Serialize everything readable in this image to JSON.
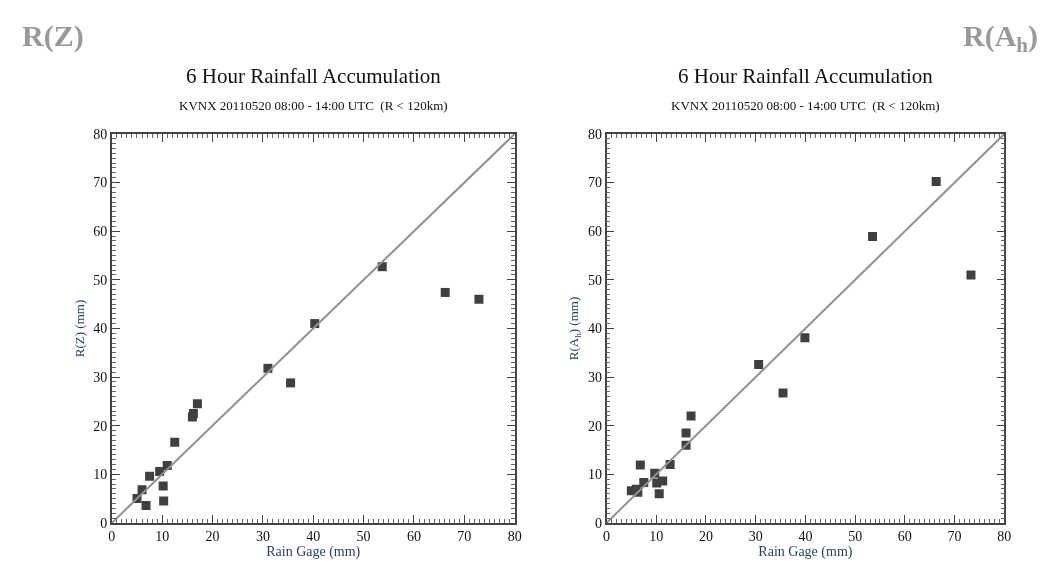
{
  "chart_data": [
    {
      "type": "scatter",
      "title": "6 Hour Rainfall Accumulation",
      "subtitle": "KVNX 20110520 08:00 - 14:00 UTC  (R < 120km)",
      "xlabel": "Rain Gage (mm)",
      "ylabel": "R(Z) (mm)",
      "annotations": [
        "R(Z)"
      ],
      "xlim": [
        0,
        80
      ],
      "ylim": [
        0,
        80
      ],
      "xticks": [
        0,
        10,
        20,
        30,
        40,
        50,
        60,
        70,
        80
      ],
      "yticks": [
        0,
        10,
        20,
        30,
        40,
        50,
        60,
        70,
        80
      ],
      "marker": "square",
      "series": [
        {
          "color": "#404040",
          "x": [
            5,
            6,
            6.8,
            7.5,
            9.5,
            10.2,
            10.3,
            11,
            12.5,
            16,
            16.2,
            17,
            31,
            35.5,
            40.3,
            53.7,
            66.2,
            72.9
          ],
          "values": [
            5,
            6.8,
            3.6,
            9.6,
            10.6,
            7.6,
            4.5,
            11.8,
            16.6,
            21.8,
            22.5,
            24.5,
            31.8,
            28.8,
            41,
            52.7,
            47.4,
            46
          ]
        },
        {
          "type": "line",
          "color": "#909090",
          "marker": "none",
          "x": [
            0,
            80
          ],
          "values": [
            0,
            80
          ]
        }
      ]
    },
    {
      "type": "scatter",
      "title": "6 Hour Rainfall Accumulation",
      "subtitle": "KVNX 20110520 08:00 - 14:00 UTC  (R < 120km)",
      "xlabel": "Rain Gage (mm)",
      "ylabel": "R(A$_{h}$) (mm)",
      "annotations": [
        "R(A$_{h}$)"
      ],
      "xlim": [
        0,
        80
      ],
      "ylim": [
        0,
        80
      ],
      "xticks": [
        0,
        10,
        20,
        30,
        40,
        50,
        60,
        70,
        80
      ],
      "yticks": [
        0,
        10,
        20,
        30,
        40,
        50,
        60,
        70,
        80
      ],
      "marker": "square",
      "series": [
        {
          "color": "#404040",
          "x": [
            5,
            6,
            6.3,
            6.8,
            7.5,
            9.7,
            10.1,
            10.6,
            11.3,
            12.8,
            16,
            16,
            17,
            30.6,
            35.5,
            39.9,
            53.5,
            66.3,
            73.3
          ],
          "values": [
            6.6,
            6.9,
            6.3,
            11.9,
            8.3,
            10.2,
            8.2,
            6.0,
            8.6,
            12,
            16,
            18.5,
            22,
            32.6,
            26.7,
            38.1,
            58.9,
            70.2,
            51
          ]
        },
        {
          "type": "line",
          "color": "#909090",
          "marker": "none",
          "x": [
            0,
            80
          ],
          "values": [
            0,
            80
          ]
        }
      ]
    }
  ]
}
